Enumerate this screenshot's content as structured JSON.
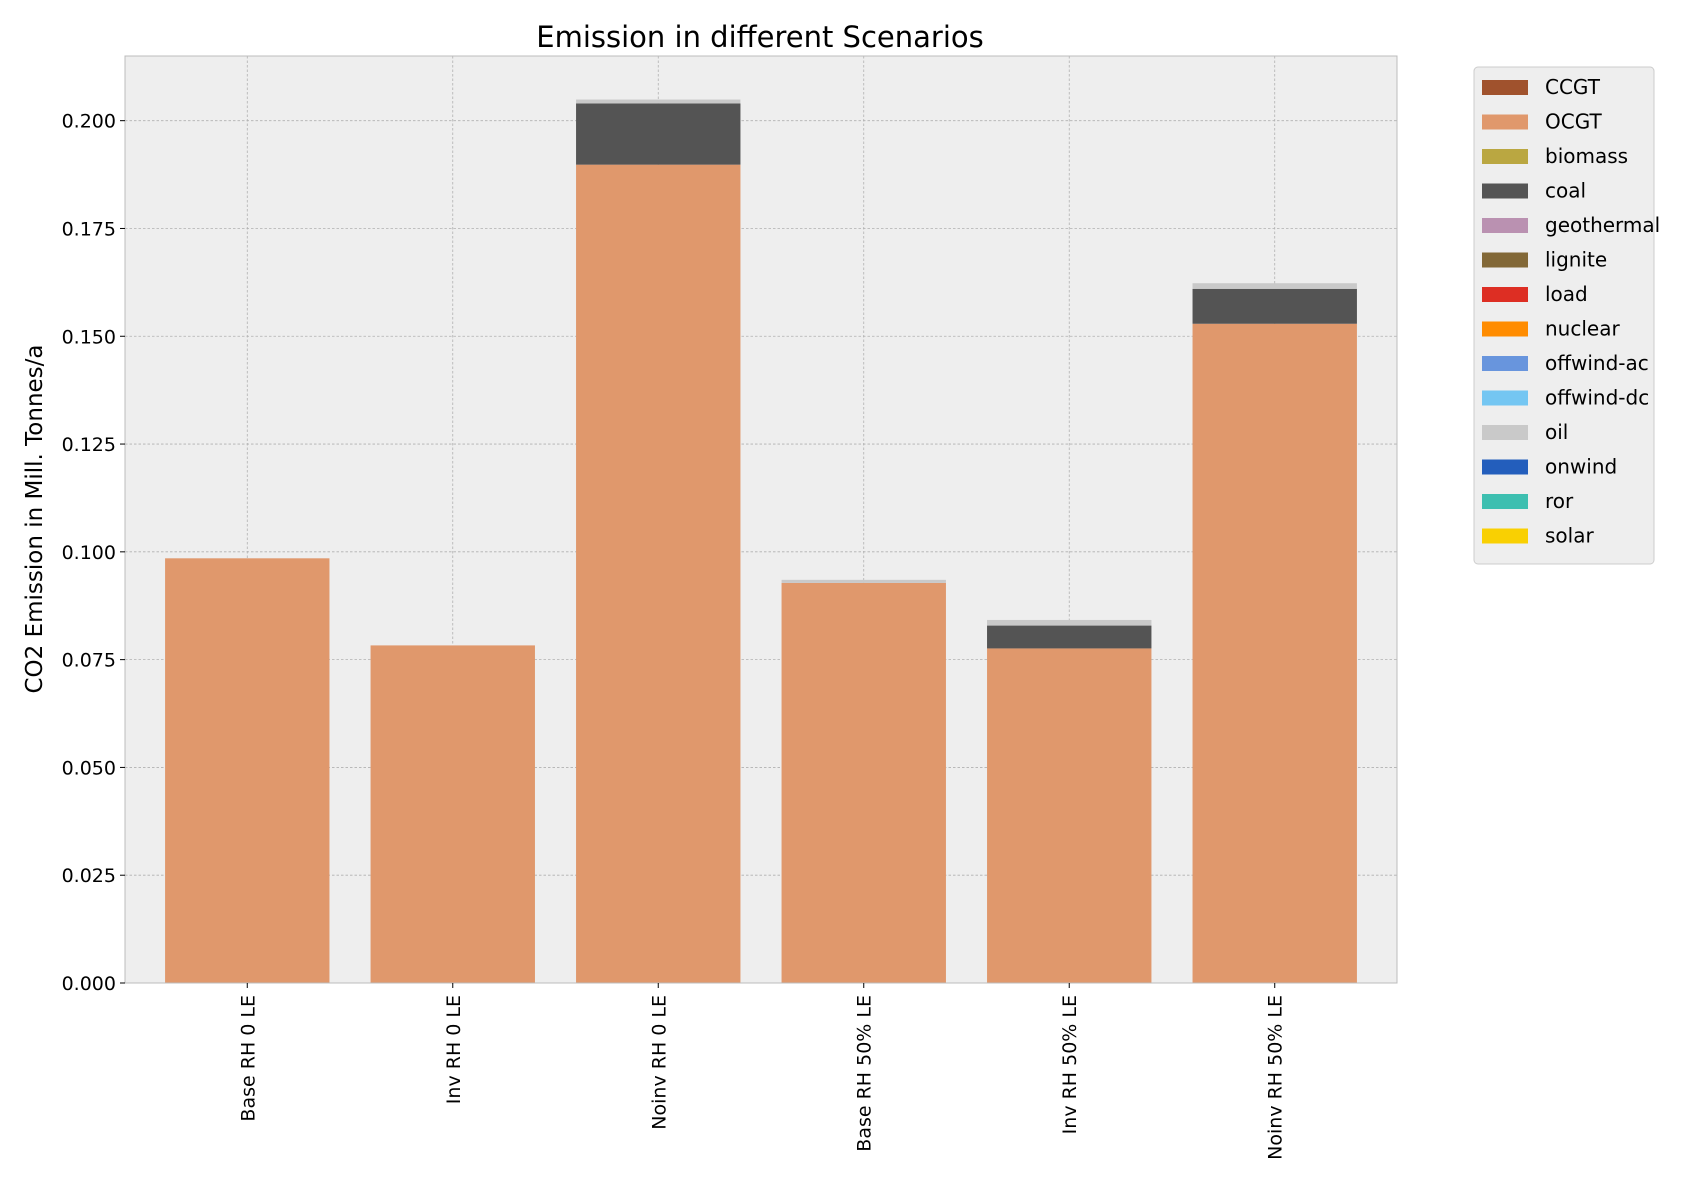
{
  "chart_data": {
    "type": "bar",
    "stacked": true,
    "title": "Emission in different Scenarios",
    "xlabel": "",
    "ylabel": "CO2 Emission in Mill. Tonnes/a",
    "ylim": [
      0,
      0.215
    ],
    "yticks": [
      "0.000",
      "0.025",
      "0.050",
      "0.075",
      "0.100",
      "0.125",
      "0.150",
      "0.175",
      "0.200"
    ],
    "grid": true,
    "legend_position": "outside-top-right",
    "categories": [
      "Base RH 0 LE",
      "Inv RH 0 LE",
      "Noinv RH 0 LE",
      "Base RH 50% LE",
      "Inv RH 50% LE",
      "Noinv RH 50% LE"
    ],
    "series": [
      {
        "name": "CCGT",
        "color": "#a0522d",
        "values": [
          0,
          0,
          0,
          0,
          0,
          0
        ]
      },
      {
        "name": "OCGT",
        "color": "#e0986c",
        "values": [
          0.0985,
          0.0783,
          0.1898,
          0.0928,
          0.0776,
          0.1529
        ]
      },
      {
        "name": "biomass",
        "color": "#baa741",
        "values": [
          0,
          0,
          0,
          0,
          0,
          0
        ]
      },
      {
        "name": "coal",
        "color": "#545454",
        "values": [
          0,
          0,
          0.0142,
          0,
          0.0053,
          0.0081
        ]
      },
      {
        "name": "geothermal",
        "color": "#ba91b1",
        "values": [
          0,
          0,
          0,
          0,
          0,
          0
        ]
      },
      {
        "name": "lignite",
        "color": "#826837",
        "values": [
          0,
          0,
          0,
          0,
          0,
          0
        ]
      },
      {
        "name": "load",
        "color": "#dd2e23",
        "values": [
          0,
          0,
          0,
          0,
          0,
          0
        ]
      },
      {
        "name": "nuclear",
        "color": "#ff8c00",
        "values": [
          0,
          0,
          0,
          0,
          0,
          0
        ]
      },
      {
        "name": "offwind-ac",
        "color": "#6895dd",
        "values": [
          0,
          0,
          0,
          0,
          0,
          0
        ]
      },
      {
        "name": "offwind-dc",
        "color": "#74c6f2",
        "values": [
          0,
          0,
          0,
          0,
          0,
          0
        ]
      },
      {
        "name": "oil",
        "color": "#c9c9c9",
        "values": [
          0,
          0,
          0.0009,
          0.0007,
          0.0013,
          0.0013
        ]
      },
      {
        "name": "onwind",
        "color": "#235ebc",
        "values": [
          0,
          0,
          0,
          0,
          0,
          0
        ]
      },
      {
        "name": "ror",
        "color": "#3dbfb0",
        "values": [
          0,
          0,
          0,
          0,
          0,
          0
        ]
      },
      {
        "name": "solar",
        "color": "#f9d002",
        "values": [
          0,
          0,
          0,
          0,
          0,
          0
        ]
      }
    ],
    "colors": {
      "plot_background": "#eeeeee",
      "legend_background": "#eeeeee",
      "axes_edge": "#bcbcbc",
      "grid": "#b0b0b0"
    }
  }
}
